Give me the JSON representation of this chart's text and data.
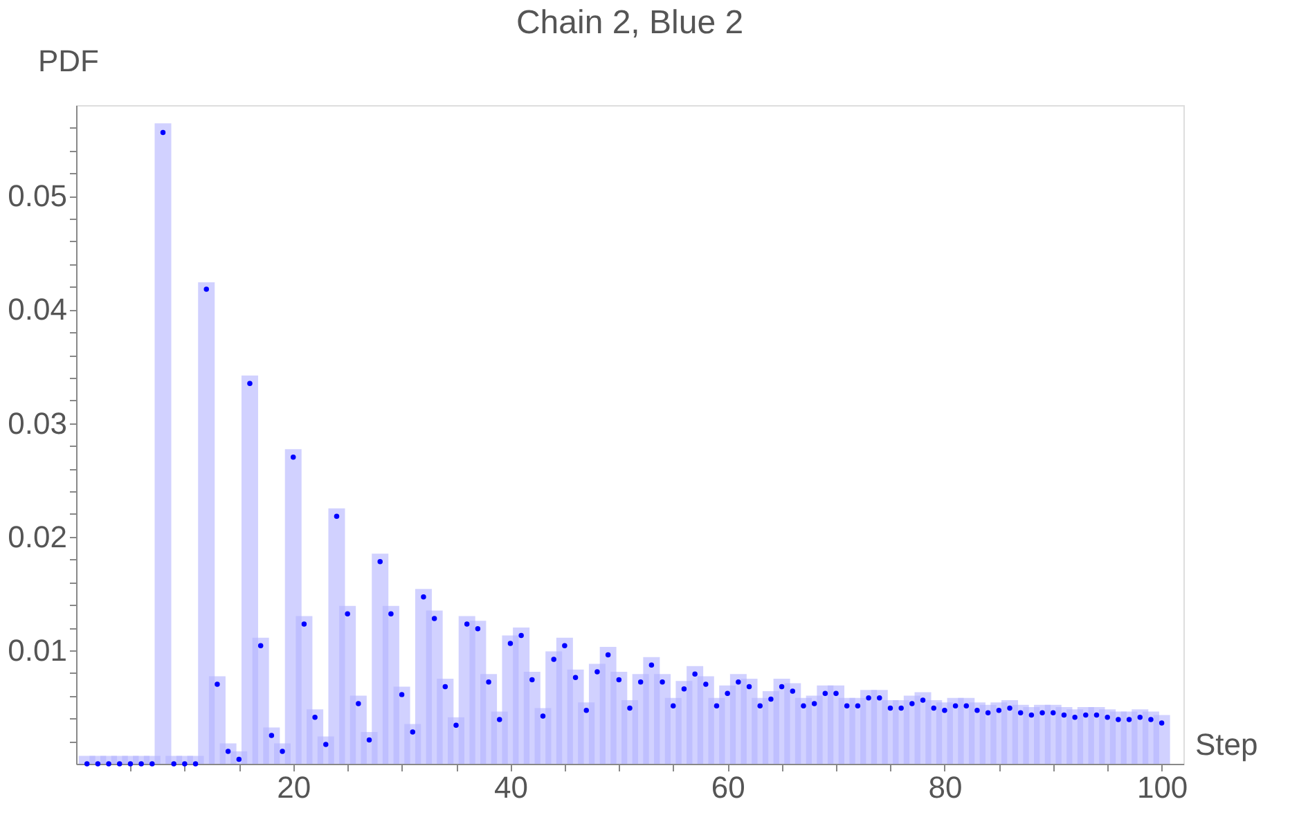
{
  "chart_data": {
    "type": "bar",
    "title": "Chain 2, Blue 2",
    "xlabel": "Step",
    "ylabel": "PDF",
    "x": [
      1,
      2,
      3,
      4,
      5,
      6,
      7,
      8,
      9,
      10,
      11,
      12,
      13,
      14,
      15,
      16,
      17,
      18,
      19,
      20,
      21,
      22,
      23,
      24,
      25,
      26,
      27,
      28,
      29,
      30,
      31,
      32,
      33,
      34,
      35,
      36,
      37,
      38,
      39,
      40,
      41,
      42,
      43,
      44,
      45,
      46,
      47,
      48,
      49,
      50,
      51,
      52,
      53,
      54,
      55,
      56,
      57,
      58,
      59,
      60,
      61,
      62,
      63,
      64,
      65,
      66,
      67,
      68,
      69,
      70,
      71,
      72,
      73,
      74,
      75,
      76,
      77,
      78,
      79,
      80,
      81,
      82,
      83,
      84,
      85,
      86,
      87,
      88,
      89,
      90,
      91,
      92,
      93,
      94,
      95,
      96,
      97,
      98,
      99,
      100
    ],
    "series": [
      {
        "color": "#b3b3ff",
        "values": [
          0.0007,
          0.0007,
          0.0007,
          0.0007,
          0.0007,
          0.0007,
          0.0007,
          0.0564,
          0.0007,
          0.0007,
          0.0007,
          0.0424,
          0.0077,
          0.0018,
          0.0011,
          0.0342,
          0.0111,
          0.0032,
          0.0018,
          0.0277,
          0.013,
          0.0048,
          0.0024,
          0.0225,
          0.0139,
          0.006,
          0.0028,
          0.0185,
          0.0139,
          0.0068,
          0.0035,
          0.0154,
          0.0135,
          0.0075,
          0.0041,
          0.013,
          0.0126,
          0.0079,
          0.0046,
          0.0113,
          0.012,
          0.0081,
          0.0049,
          0.0099,
          0.0111,
          0.0083,
          0.0054,
          0.0088,
          0.0103,
          0.0081,
          0.0056,
          0.0079,
          0.0094,
          0.0079,
          0.0058,
          0.0073,
          0.0086,
          0.0077,
          0.0058,
          0.0069,
          0.0079,
          0.0075,
          0.0058,
          0.0064,
          0.0075,
          0.0071,
          0.0058,
          0.006,
          0.0069,
          0.0069,
          0.0058,
          0.0058,
          0.0065,
          0.0065,
          0.0056,
          0.0056,
          0.006,
          0.0063,
          0.0056,
          0.0054,
          0.0058,
          0.0058,
          0.0054,
          0.0052,
          0.0054,
          0.0056,
          0.0052,
          0.005,
          0.0052,
          0.0052,
          0.005,
          0.0048,
          0.005,
          0.005,
          0.0048,
          0.0046,
          0.0046,
          0.0048,
          0.0046,
          0.0043
        ]
      },
      {
        "type": "scatter",
        "color": "#0000ff",
        "marker": "circle",
        "values": [
          0,
          0,
          0,
          0,
          0,
          0,
          0,
          0.0556,
          0,
          0,
          0,
          0.0418,
          0.007,
          0.0011,
          0.0004,
          0.0335,
          0.0104,
          0.0025,
          0.0011,
          0.027,
          0.0123,
          0.0041,
          0.0017,
          0.0218,
          0.0132,
          0.0053,
          0.0021,
          0.0178,
          0.0132,
          0.0061,
          0.0028,
          0.0147,
          0.0128,
          0.0068,
          0.0034,
          0.0123,
          0.0119,
          0.0072,
          0.0039,
          0.0106,
          0.0113,
          0.0074,
          0.0042,
          0.0092,
          0.0104,
          0.0076,
          0.0047,
          0.0081,
          0.0096,
          0.0074,
          0.0049,
          0.0072,
          0.0087,
          0.0072,
          0.0051,
          0.0066,
          0.0079,
          0.007,
          0.0051,
          0.0062,
          0.0072,
          0.0068,
          0.0051,
          0.0057,
          0.0068,
          0.0064,
          0.0051,
          0.0053,
          0.0062,
          0.0062,
          0.0051,
          0.0051,
          0.0058,
          0.0058,
          0.0049,
          0.0049,
          0.0053,
          0.0056,
          0.0049,
          0.0047,
          0.0051,
          0.0051,
          0.0047,
          0.0045,
          0.0047,
          0.0049,
          0.0045,
          0.0043,
          0.0045,
          0.0045,
          0.0043,
          0.0041,
          0.0043,
          0.0043,
          0.0041,
          0.0039,
          0.0039,
          0.0041,
          0.0039,
          0.0036
        ]
      }
    ],
    "xlim": [
      0,
      102
    ],
    "ylim": [
      0,
      0.058
    ],
    "xticks": [
      {
        "value": 5,
        "label": null
      },
      {
        "value": 10,
        "label": null
      },
      {
        "value": 15,
        "label": null
      },
      20,
      {
        "value": 25,
        "label": null
      },
      {
        "value": 30,
        "label": null
      },
      {
        "value": 35,
        "label": null
      },
      40,
      {
        "value": 45,
        "label": null
      },
      {
        "value": 50,
        "label": null
      },
      {
        "value": 55,
        "label": null
      },
      60,
      {
        "value": 65,
        "label": null
      },
      {
        "value": 70,
        "label": null
      },
      {
        "value": 75,
        "label": null
      },
      80,
      {
        "value": 85,
        "label": null
      },
      {
        "value": 90,
        "label": null
      },
      {
        "value": 95,
        "label": null
      },
      100
    ],
    "yticks": [
      {
        "value": 0.002,
        "label": null
      },
      {
        "value": 0.004,
        "label": null
      },
      {
        "value": 0.006,
        "label": null
      },
      {
        "value": 0.008,
        "label": null
      },
      0.01,
      {
        "value": 0.012,
        "label": null
      },
      {
        "value": 0.014,
        "label": null
      },
      {
        "value": 0.016,
        "label": null
      },
      {
        "value": 0.018,
        "label": null
      },
      0.02,
      {
        "value": 0.022,
        "label": null
      },
      {
        "value": 0.024,
        "label": null
      },
      {
        "value": 0.026,
        "label": null
      },
      {
        "value": 0.028,
        "label": null
      },
      0.03,
      {
        "value": 0.032,
        "label": null
      },
      {
        "value": 0.034,
        "label": null
      },
      {
        "value": 0.036,
        "label": null
      },
      {
        "value": 0.038,
        "label": null
      },
      0.04,
      {
        "value": 0.042,
        "label": null
      },
      {
        "value": 0.044,
        "label": null
      },
      {
        "value": 0.046,
        "label": null
      },
      {
        "value": 0.048,
        "label": null
      },
      0.05,
      {
        "value": 0.052,
        "label": null
      },
      {
        "value": 0.054,
        "label": null
      },
      {
        "value": 0.056,
        "label": null
      }
    ],
    "grid": false
  }
}
